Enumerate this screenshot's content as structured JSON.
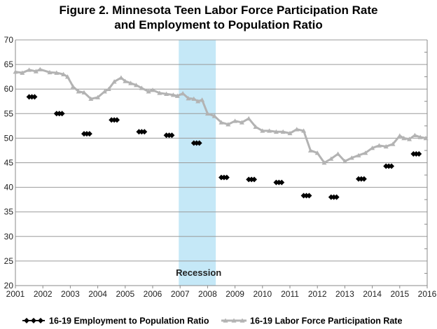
{
  "chart_data": {
    "type": "line",
    "title_line1": "Figure 2. Minnesota Teen Labor Force Participation Rate",
    "title_line2": "and Employment to Population Ratio",
    "ylim": [
      20,
      70
    ],
    "yticks": [
      20,
      25,
      30,
      35,
      40,
      45,
      50,
      55,
      60,
      65,
      70
    ],
    "xlim": [
      2001,
      2016
    ],
    "xticks": [
      2001,
      2002,
      2003,
      2004,
      2005,
      2006,
      2007,
      2008,
      2009,
      2010,
      2011,
      2012,
      2013,
      2014,
      2015,
      2016
    ],
    "recession": {
      "label": "Recession",
      "start": 2006.95,
      "end": 2008.3,
      "color": "#c5e8f7"
    },
    "legend_position": "bottom",
    "grid": true,
    "series": [
      {
        "name": "16-19 Employment to Population Ratio",
        "color": "#000000",
        "marker": "diamond",
        "segments": [
          {
            "x": [
              2001.5,
              2001.6,
              2001.7
            ],
            "y": [
              58.4,
              58.4,
              58.4
            ]
          },
          {
            "x": [
              2002.5,
              2002.6,
              2002.7
            ],
            "y": [
              55.0,
              55.0,
              55.0
            ]
          },
          {
            "x": [
              2003.5,
              2003.6,
              2003.7
            ],
            "y": [
              50.9,
              50.9,
              50.9
            ]
          },
          {
            "x": [
              2004.5,
              2004.6,
              2004.7
            ],
            "y": [
              53.7,
              53.7,
              53.7
            ]
          },
          {
            "x": [
              2005.5,
              2005.6,
              2005.7
            ],
            "y": [
              51.3,
              51.3,
              51.3
            ]
          },
          {
            "x": [
              2006.5,
              2006.6,
              2006.7
            ],
            "y": [
              50.6,
              50.6,
              50.6
            ]
          },
          {
            "x": [
              2007.5,
              2007.6,
              2007.7
            ],
            "y": [
              49.0,
              49.0,
              49.0
            ]
          },
          {
            "x": [
              2008.5,
              2008.6,
              2008.7
            ],
            "y": [
              42.0,
              42.0,
              42.0
            ]
          },
          {
            "x": [
              2009.5,
              2009.6,
              2009.7
            ],
            "y": [
              41.6,
              41.6,
              41.6
            ]
          },
          {
            "x": [
              2010.5,
              2010.6,
              2010.7
            ],
            "y": [
              41.0,
              41.0,
              41.0
            ]
          },
          {
            "x": [
              2011.5,
              2011.6,
              2011.7
            ],
            "y": [
              38.3,
              38.3,
              38.3
            ]
          },
          {
            "x": [
              2012.5,
              2012.6,
              2012.7
            ],
            "y": [
              38.0,
              38.0,
              38.0
            ]
          },
          {
            "x": [
              2013.5,
              2013.6,
              2013.7
            ],
            "y": [
              41.7,
              41.7,
              41.7
            ]
          },
          {
            "x": [
              2014.5,
              2014.6,
              2014.7
            ],
            "y": [
              44.3,
              44.3,
              44.3
            ]
          },
          {
            "x": [
              2015.5,
              2015.6,
              2015.7
            ],
            "y": [
              46.8,
              46.8,
              46.8
            ]
          }
        ]
      },
      {
        "name": "16-19 Labor Force Participation Rate",
        "color": "#b3b3b3",
        "marker": "triangle",
        "x": [
          2001.0,
          2001.25,
          2001.5,
          2001.75,
          2001.9,
          2002.25,
          2002.5,
          2002.75,
          2002.9,
          2003.1,
          2003.3,
          2003.5,
          2003.75,
          2004.0,
          2004.25,
          2004.4,
          2004.6,
          2004.85,
          2005.0,
          2005.2,
          2005.4,
          2005.6,
          2005.85,
          2006.0,
          2006.25,
          2006.5,
          2006.75,
          2006.9,
          2007.1,
          2007.3,
          2007.5,
          2007.65,
          2007.8,
          2008.0,
          2008.25,
          2008.5,
          2008.75,
          2009.0,
          2009.25,
          2009.5,
          2009.75,
          2010.0,
          2010.25,
          2010.5,
          2010.75,
          2011.0,
          2011.25,
          2011.5,
          2011.75,
          2012.0,
          2012.25,
          2012.5,
          2012.75,
          2013.0,
          2013.25,
          2013.5,
          2013.75,
          2014.0,
          2014.25,
          2014.5,
          2014.75,
          2015.0,
          2015.15,
          2015.35,
          2015.55,
          2015.75,
          2015.95
        ],
        "y": [
          63.5,
          63.3,
          63.9,
          63.6,
          64.0,
          63.4,
          63.3,
          63.0,
          62.5,
          60.5,
          59.5,
          59.3,
          58.0,
          58.3,
          59.5,
          60.0,
          61.5,
          62.3,
          61.6,
          61.2,
          60.8,
          60.2,
          59.5,
          59.8,
          59.2,
          59.0,
          58.8,
          58.6,
          59.1,
          58.1,
          58.0,
          57.5,
          57.8,
          55.0,
          54.5,
          53.2,
          52.8,
          53.5,
          53.2,
          54.0,
          52.3,
          51.5,
          51.5,
          51.3,
          51.3,
          51.0,
          51.8,
          51.5,
          47.5,
          47.0,
          45.0,
          45.8,
          46.8,
          45.3,
          46.0,
          46.5,
          47.0,
          48.0,
          48.5,
          48.3,
          48.8,
          50.5,
          50.0,
          49.8,
          50.6,
          50.2,
          50.0
        ]
      }
    ]
  }
}
